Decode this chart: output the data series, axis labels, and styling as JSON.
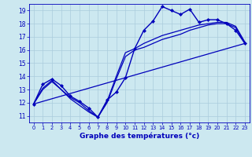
{
  "title": "Graphe des températures (°c)",
  "bg_color": "#cce8f0",
  "grid_color": "#aaccdd",
  "line_color": "#0000bb",
  "xlim": [
    -0.5,
    23.5
  ],
  "ylim": [
    10.5,
    19.5
  ],
  "yticks": [
    11,
    12,
    13,
    14,
    15,
    16,
    17,
    18,
    19
  ],
  "xticks": [
    0,
    1,
    2,
    3,
    4,
    5,
    6,
    7,
    8,
    9,
    10,
    11,
    12,
    13,
    14,
    15,
    16,
    17,
    18,
    19,
    20,
    21,
    22,
    23
  ],
  "series": [
    {
      "x": [
        0,
        1,
        2,
        3,
        4,
        5,
        6,
        7,
        8,
        9,
        10,
        11,
        12,
        13,
        14,
        15,
        16,
        17,
        18,
        19,
        20,
        21,
        22,
        23
      ],
      "y": [
        11.9,
        13.4,
        13.8,
        13.3,
        12.5,
        12.1,
        11.6,
        10.9,
        12.2,
        12.8,
        13.9,
        16.1,
        17.5,
        18.2,
        19.3,
        19.0,
        18.7,
        19.1,
        18.1,
        18.3,
        18.3,
        18.0,
        17.5,
        16.5
      ],
      "marker": "D",
      "markersize": 2.0,
      "linewidth": 1.0
    },
    {
      "x": [
        0,
        1,
        2,
        3,
        4,
        5,
        6,
        7,
        8,
        9,
        10,
        11,
        12,
        13,
        14,
        15,
        16,
        17,
        18,
        19,
        20,
        21,
        22,
        23
      ],
      "y": [
        11.9,
        13.1,
        13.7,
        13.0,
        12.4,
        12.0,
        11.4,
        10.9,
        12.1,
        14.0,
        15.8,
        16.1,
        16.5,
        16.8,
        17.1,
        17.3,
        17.5,
        17.7,
        17.9,
        18.0,
        18.1,
        18.1,
        17.8,
        16.6
      ],
      "marker": null,
      "markersize": 0,
      "linewidth": 0.9
    },
    {
      "x": [
        0,
        1,
        2,
        3,
        4,
        5,
        6,
        7,
        8,
        9,
        10,
        11,
        12,
        13,
        14,
        15,
        16,
        17,
        18,
        19,
        20,
        21,
        22,
        23
      ],
      "y": [
        11.9,
        13.0,
        13.6,
        13.0,
        12.3,
        11.8,
        11.3,
        10.9,
        12.0,
        13.8,
        15.5,
        16.0,
        16.2,
        16.5,
        16.8,
        17.0,
        17.2,
        17.5,
        17.7,
        17.9,
        18.0,
        18.0,
        17.7,
        16.5
      ],
      "marker": null,
      "markersize": 0,
      "linewidth": 0.9
    },
    {
      "x": [
        0,
        23
      ],
      "y": [
        11.9,
        16.5
      ],
      "marker": null,
      "markersize": 0,
      "linewidth": 0.9
    }
  ]
}
